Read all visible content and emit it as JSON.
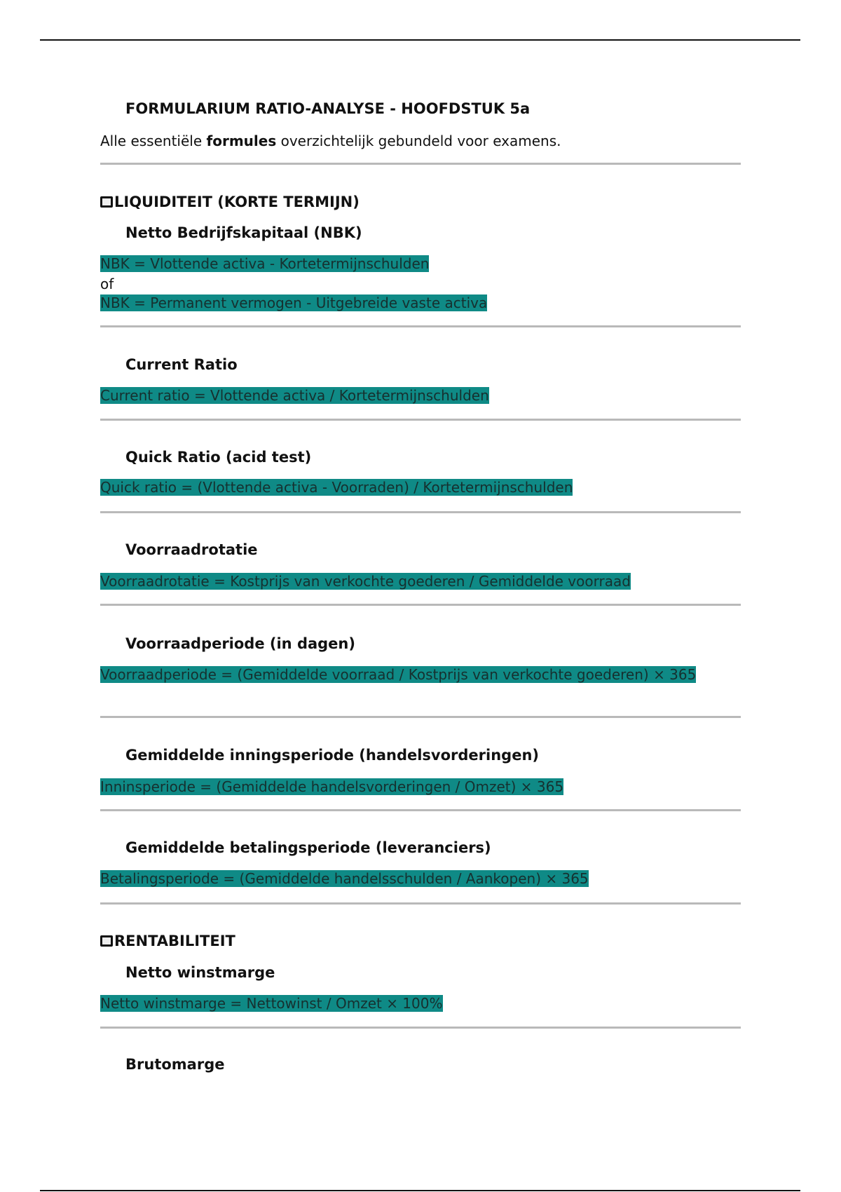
{
  "title": "FORMULARIUM RATIO-ANALYSE - HOOFDSTUK 5a",
  "subtitle": {
    "before": "Alle essentiële ",
    "bold": "formules",
    "after": " overzichtelijk gebundeld voor examens."
  },
  "colors": {
    "highlight": "#0f8a86"
  },
  "sections": [
    {
      "icon": "box-icon",
      "heading": "LIQUIDITEIT (KORTE TERMIJN)"
    },
    {
      "icon": "box-icon",
      "heading": "RENTABILITEIT"
    }
  ],
  "formulas": {
    "nbk": {
      "title": "Netto Bedrijfskapitaal (NBK)",
      "line1": "NBK = Vlottende activa - Kortetermijnschulden",
      "or": "of",
      "line2": "NBK = Permanent vermogen - Uitgebreide vaste activa"
    },
    "current": {
      "title": "Current Ratio",
      "formula": "Current ratio = Vlottende activa / Kortetermijnschulden"
    },
    "quick": {
      "title": "Quick Ratio (acid test)",
      "formula": "Quick ratio = (Vlottende activa - Voorraden) / Kortetermijnschulden"
    },
    "rotatie": {
      "title": "Voorraadrotatie",
      "formula": "Voorraadrotatie = Kostprijs van verkochte goederen / Gemiddelde voorraad"
    },
    "periode": {
      "title": "Voorraadperiode (in dagen)",
      "formula": "Voorraadperiode = (Gemiddelde voorraad / Kostprijs van verkochte goederen) × 365"
    },
    "inning": {
      "title": "Gemiddelde inningsperiode (handelsvorderingen)",
      "formula": "Inninsperiode = (Gemiddelde handelsvorderingen / Omzet) × 365"
    },
    "betaling": {
      "title": "Gemiddelde betalingsperiode (leveranciers)",
      "formula": "Betalingsperiode = (Gemiddelde handelsschulden / Aankopen) × 365"
    },
    "winstmarge": {
      "title": "Netto winstmarge",
      "formula": "Netto winstmarge = Nettowinst / Omzet × 100%"
    },
    "brutomarge": {
      "title": "Brutomarge"
    }
  }
}
